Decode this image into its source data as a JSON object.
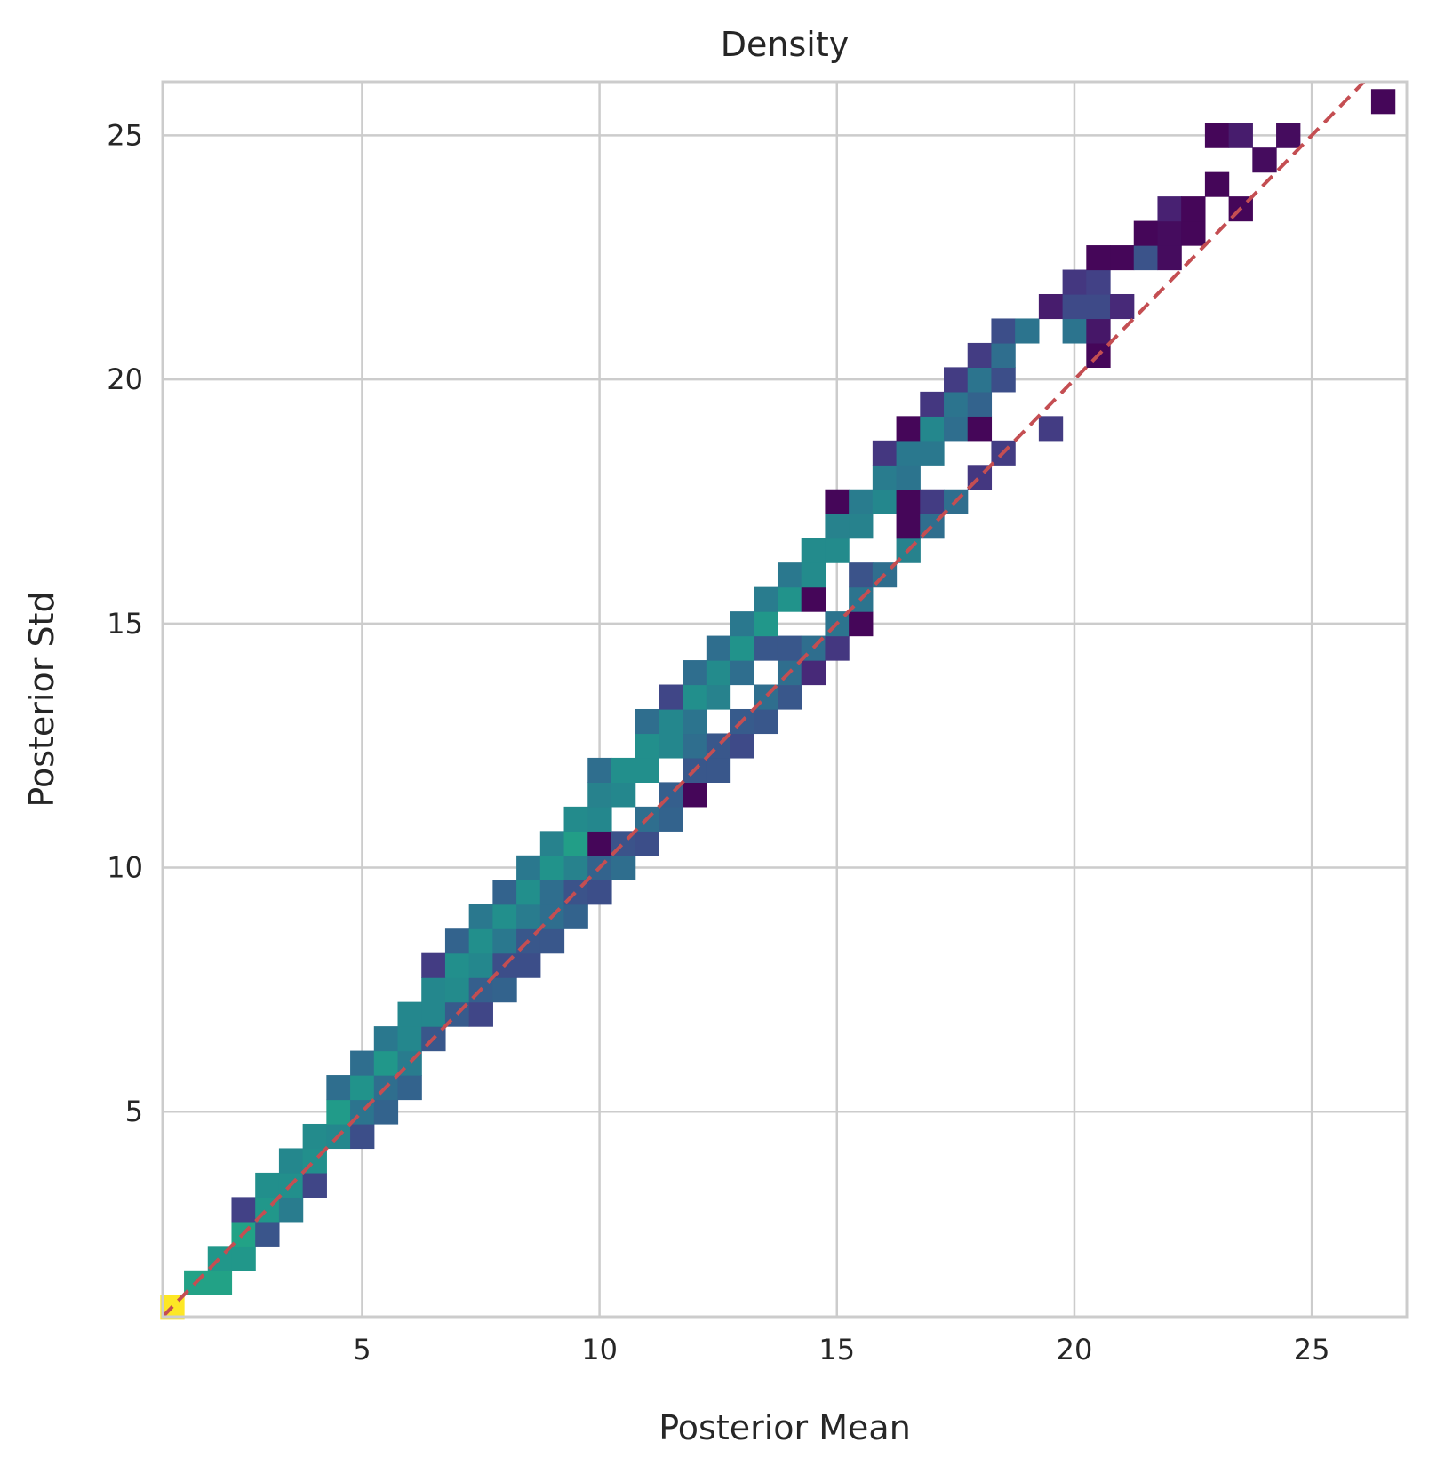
{
  "chart_data": {
    "type": "heatmap",
    "title": "Density",
    "xlabel": "Posterior Mean",
    "ylabel": "Posterior Std",
    "xlim": [
      0.8,
      27.0
    ],
    "ylim": [
      0.8,
      26.1
    ],
    "xticks": [
      5,
      10,
      15,
      20,
      25
    ],
    "yticks": [
      5,
      10,
      15,
      20,
      25
    ],
    "grid": true,
    "colormap": "viridis",
    "bin_width": 0.5,
    "reference_line": {
      "style": "dashed",
      "color": "#c44e52",
      "x": [
        0.8,
        27.0
      ],
      "y": [
        0.8,
        27.0
      ]
    },
    "cells": [
      [
        1.0,
        1.0,
        1.0
      ],
      [
        1.5,
        1.5,
        0.72
      ],
      [
        2.0,
        1.5,
        0.72
      ],
      [
        2.0,
        2.0,
        0.66
      ],
      [
        2.5,
        2.0,
        0.66
      ],
      [
        2.5,
        2.5,
        0.72
      ],
      [
        3.0,
        2.5,
        0.33
      ],
      [
        2.5,
        3.0,
        0.24
      ],
      [
        3.0,
        3.0,
        0.66
      ],
      [
        3.5,
        3.0,
        0.52
      ],
      [
        3.0,
        3.5,
        0.62
      ],
      [
        3.5,
        3.5,
        0.62
      ],
      [
        4.0,
        3.5,
        0.26
      ],
      [
        3.5,
        4.0,
        0.58
      ],
      [
        4.0,
        4.0,
        0.62
      ],
      [
        4.0,
        4.5,
        0.6
      ],
      [
        4.5,
        4.5,
        0.58
      ],
      [
        5.0,
        4.5,
        0.3
      ],
      [
        4.5,
        5.0,
        0.68
      ],
      [
        5.0,
        5.0,
        0.48
      ],
      [
        5.5,
        5.0,
        0.4
      ],
      [
        4.5,
        5.5,
        0.45
      ],
      [
        5.0,
        5.5,
        0.64
      ],
      [
        5.5,
        5.5,
        0.45
      ],
      [
        6.0,
        5.5,
        0.4
      ],
      [
        5.0,
        6.0,
        0.45
      ],
      [
        5.5,
        6.0,
        0.66
      ],
      [
        6.0,
        6.0,
        0.52
      ],
      [
        5.5,
        6.5,
        0.5
      ],
      [
        6.0,
        6.5,
        0.58
      ],
      [
        6.5,
        6.5,
        0.34
      ],
      [
        6.0,
        7.0,
        0.58
      ],
      [
        6.5,
        7.0,
        0.58
      ],
      [
        7.0,
        7.0,
        0.36
      ],
      [
        7.5,
        7.0,
        0.26
      ],
      [
        6.5,
        7.5,
        0.58
      ],
      [
        7.0,
        7.5,
        0.6
      ],
      [
        7.5,
        7.5,
        0.38
      ],
      [
        8.0,
        7.5,
        0.4
      ],
      [
        6.5,
        8.0,
        0.22
      ],
      [
        7.0,
        8.0,
        0.62
      ],
      [
        7.5,
        8.0,
        0.58
      ],
      [
        8.0,
        8.0,
        0.3
      ],
      [
        8.5,
        8.0,
        0.3
      ],
      [
        7.0,
        8.5,
        0.4
      ],
      [
        7.5,
        8.5,
        0.62
      ],
      [
        8.0,
        8.5,
        0.5
      ],
      [
        8.5,
        8.5,
        0.34
      ],
      [
        9.0,
        8.5,
        0.34
      ],
      [
        7.5,
        9.0,
        0.5
      ],
      [
        8.0,
        9.0,
        0.62
      ],
      [
        8.5,
        9.0,
        0.52
      ],
      [
        9.0,
        9.0,
        0.45
      ],
      [
        9.5,
        9.0,
        0.4
      ],
      [
        8.0,
        9.5,
        0.4
      ],
      [
        8.5,
        9.5,
        0.62
      ],
      [
        9.0,
        9.5,
        0.45
      ],
      [
        9.5,
        9.5,
        0.32
      ],
      [
        10.0,
        9.5,
        0.3
      ],
      [
        8.5,
        10.0,
        0.5
      ],
      [
        9.0,
        10.0,
        0.64
      ],
      [
        9.5,
        10.0,
        0.55
      ],
      [
        10.0,
        10.0,
        0.4
      ],
      [
        10.5,
        10.0,
        0.45
      ],
      [
        9.0,
        10.5,
        0.55
      ],
      [
        9.5,
        10.5,
        0.7
      ],
      [
        10.0,
        10.5,
        0.02
      ],
      [
        10.5,
        10.5,
        0.32
      ],
      [
        11.0,
        10.5,
        0.3
      ],
      [
        9.5,
        11.0,
        0.6
      ],
      [
        10.0,
        11.0,
        0.58
      ],
      [
        11.0,
        11.0,
        0.45
      ],
      [
        11.5,
        11.0,
        0.4
      ],
      [
        10.0,
        11.5,
        0.55
      ],
      [
        10.5,
        11.5,
        0.58
      ],
      [
        11.5,
        11.5,
        0.38
      ],
      [
        12.0,
        11.5,
        0.02
      ],
      [
        10.0,
        12.0,
        0.45
      ],
      [
        10.5,
        12.0,
        0.62
      ],
      [
        11.0,
        12.0,
        0.62
      ],
      [
        12.0,
        12.0,
        0.34
      ],
      [
        12.5,
        12.0,
        0.34
      ],
      [
        11.0,
        12.5,
        0.62
      ],
      [
        11.5,
        12.5,
        0.58
      ],
      [
        12.0,
        12.5,
        0.45
      ],
      [
        12.5,
        12.5,
        0.34
      ],
      [
        13.0,
        12.5,
        0.28
      ],
      [
        11.0,
        13.0,
        0.45
      ],
      [
        11.5,
        13.0,
        0.58
      ],
      [
        12.0,
        13.0,
        0.48
      ],
      [
        13.0,
        13.0,
        0.36
      ],
      [
        13.5,
        13.0,
        0.34
      ],
      [
        11.5,
        13.5,
        0.26
      ],
      [
        12.0,
        13.5,
        0.62
      ],
      [
        12.5,
        13.5,
        0.55
      ],
      [
        13.5,
        13.5,
        0.45
      ],
      [
        14.0,
        13.5,
        0.34
      ],
      [
        12.0,
        14.0,
        0.45
      ],
      [
        12.5,
        14.0,
        0.6
      ],
      [
        13.0,
        14.0,
        0.45
      ],
      [
        14.0,
        14.0,
        0.45
      ],
      [
        14.5,
        14.0,
        0.15
      ],
      [
        12.5,
        14.5,
        0.45
      ],
      [
        13.0,
        14.5,
        0.64
      ],
      [
        13.5,
        14.5,
        0.34
      ],
      [
        14.0,
        14.5,
        0.34
      ],
      [
        14.5,
        14.5,
        0.45
      ],
      [
        15.0,
        14.5,
        0.2
      ],
      [
        13.0,
        15.0,
        0.5
      ],
      [
        13.5,
        15.0,
        0.66
      ],
      [
        15.0,
        15.0,
        0.48
      ],
      [
        15.5,
        15.0,
        0.02
      ],
      [
        13.5,
        15.5,
        0.52
      ],
      [
        14.0,
        15.5,
        0.64
      ],
      [
        14.5,
        15.5,
        0.02
      ],
      [
        15.5,
        15.5,
        0.48
      ],
      [
        14.0,
        16.0,
        0.5
      ],
      [
        14.5,
        16.0,
        0.6
      ],
      [
        15.5,
        16.0,
        0.32
      ],
      [
        16.0,
        16.0,
        0.45
      ],
      [
        14.5,
        16.5,
        0.6
      ],
      [
        15.0,
        16.5,
        0.6
      ],
      [
        16.5,
        16.5,
        0.55
      ],
      [
        15.0,
        17.0,
        0.55
      ],
      [
        15.5,
        17.0,
        0.55
      ],
      [
        16.5,
        17.0,
        0.02
      ],
      [
        17.0,
        17.0,
        0.45
      ],
      [
        15.0,
        17.5,
        0.02
      ],
      [
        15.5,
        17.5,
        0.52
      ],
      [
        16.0,
        17.5,
        0.58
      ],
      [
        16.5,
        17.5,
        0.02
      ],
      [
        17.0,
        17.5,
        0.22
      ],
      [
        17.5,
        17.5,
        0.45
      ],
      [
        16.0,
        18.0,
        0.52
      ],
      [
        16.5,
        18.0,
        0.48
      ],
      [
        18.0,
        18.0,
        0.2
      ],
      [
        16.0,
        18.5,
        0.2
      ],
      [
        16.5,
        18.5,
        0.5
      ],
      [
        17.0,
        18.5,
        0.5
      ],
      [
        18.5,
        18.5,
        0.22
      ],
      [
        16.5,
        19.0,
        0.02
      ],
      [
        17.0,
        19.0,
        0.58
      ],
      [
        17.5,
        19.0,
        0.45
      ],
      [
        18.0,
        19.0,
        0.02
      ],
      [
        19.5,
        19.0,
        0.22
      ],
      [
        17.0,
        19.5,
        0.2
      ],
      [
        17.5,
        19.5,
        0.48
      ],
      [
        18.0,
        19.5,
        0.4
      ],
      [
        17.5,
        20.0,
        0.22
      ],
      [
        18.0,
        20.0,
        0.48
      ],
      [
        18.5,
        20.0,
        0.3
      ],
      [
        18.0,
        20.5,
        0.22
      ],
      [
        18.5,
        20.5,
        0.45
      ],
      [
        20.5,
        20.5,
        0.02
      ],
      [
        18.5,
        21.0,
        0.3
      ],
      [
        19.0,
        21.0,
        0.48
      ],
      [
        20.0,
        21.0,
        0.48
      ],
      [
        20.5,
        21.0,
        0.08
      ],
      [
        19.5,
        21.5,
        0.1
      ],
      [
        20.0,
        21.5,
        0.28
      ],
      [
        20.5,
        21.5,
        0.28
      ],
      [
        21.0,
        21.5,
        0.15
      ],
      [
        20.0,
        22.0,
        0.2
      ],
      [
        20.5,
        22.0,
        0.24
      ],
      [
        20.5,
        22.5,
        0.02
      ],
      [
        21.0,
        22.5,
        0.02
      ],
      [
        21.5,
        22.5,
        0.32
      ],
      [
        22.0,
        22.5,
        0.04
      ],
      [
        21.5,
        23.0,
        0.02
      ],
      [
        22.0,
        23.0,
        0.04
      ],
      [
        22.5,
        23.0,
        0.02
      ],
      [
        22.0,
        23.5,
        0.12
      ],
      [
        22.5,
        23.5,
        0.02
      ],
      [
        23.5,
        23.5,
        0.02
      ],
      [
        23.0,
        24.0,
        0.02
      ],
      [
        23.0,
        25.0,
        0.02
      ],
      [
        23.5,
        25.0,
        0.1
      ],
      [
        24.5,
        25.0,
        0.04
      ],
      [
        24.0,
        24.5,
        0.04
      ],
      [
        26.5,
        25.7,
        0.02
      ]
    ]
  }
}
